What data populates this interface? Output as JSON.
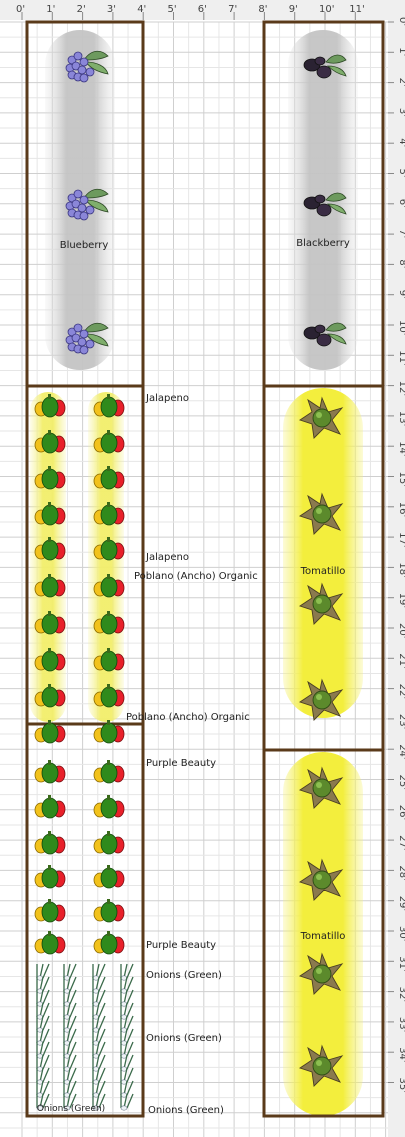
{
  "ruler": {
    "x_labels": [
      "0'",
      "1'",
      "2'",
      "3'",
      "4'",
      "5'",
      "6'",
      "7'",
      "8'",
      "9'",
      "10'",
      "11'"
    ],
    "y_labels": [
      "0'",
      "1'",
      "2'",
      "3'",
      "4'",
      "5'",
      "6'",
      "7'",
      "8'",
      "9'",
      "10'",
      "11'",
      "12'",
      "13'",
      "14'",
      "15'",
      "16'",
      "17'",
      "18'",
      "19'",
      "20'",
      "21'",
      "22'",
      "23'",
      "24'",
      "25'",
      "26'",
      "27'",
      "28'",
      "29'",
      "30'",
      "31'",
      "32'",
      "33'",
      "34'",
      "35'"
    ]
  },
  "beds": {
    "left_upper": {
      "crop": "Blueberry"
    },
    "right_upper": {
      "crop": "Blackberry"
    },
    "right_middle": {
      "crop": "Tomatillo"
    },
    "right_lower": {
      "crop": "Tomatillo"
    },
    "left_bottom_overlay": {
      "crop": "Onions (Green)"
    }
  },
  "side_labels": {
    "jalapeno_top": "Jalapeno",
    "jalapeno_bottom": "Jalapeno",
    "poblano_top": "Poblano (Ancho) Organic",
    "poblano_bottom": "Poblano (Ancho) Organic",
    "purple_top": "Purple Beauty",
    "purple_bottom": "Purple Beauty",
    "onions_1": "Onions (Green)",
    "onions_2": "Onions (Green)",
    "onions_3": "Onions (Green)"
  },
  "colors": {
    "bed_border": "#5a3a1a",
    "grid_line": "#d4d4d4",
    "ruler_bg": "#efefef",
    "berry_shade": "#c8c8c8",
    "tomatillo_shade": "#f5f04a",
    "pepper_shade": "#f4f07a"
  }
}
